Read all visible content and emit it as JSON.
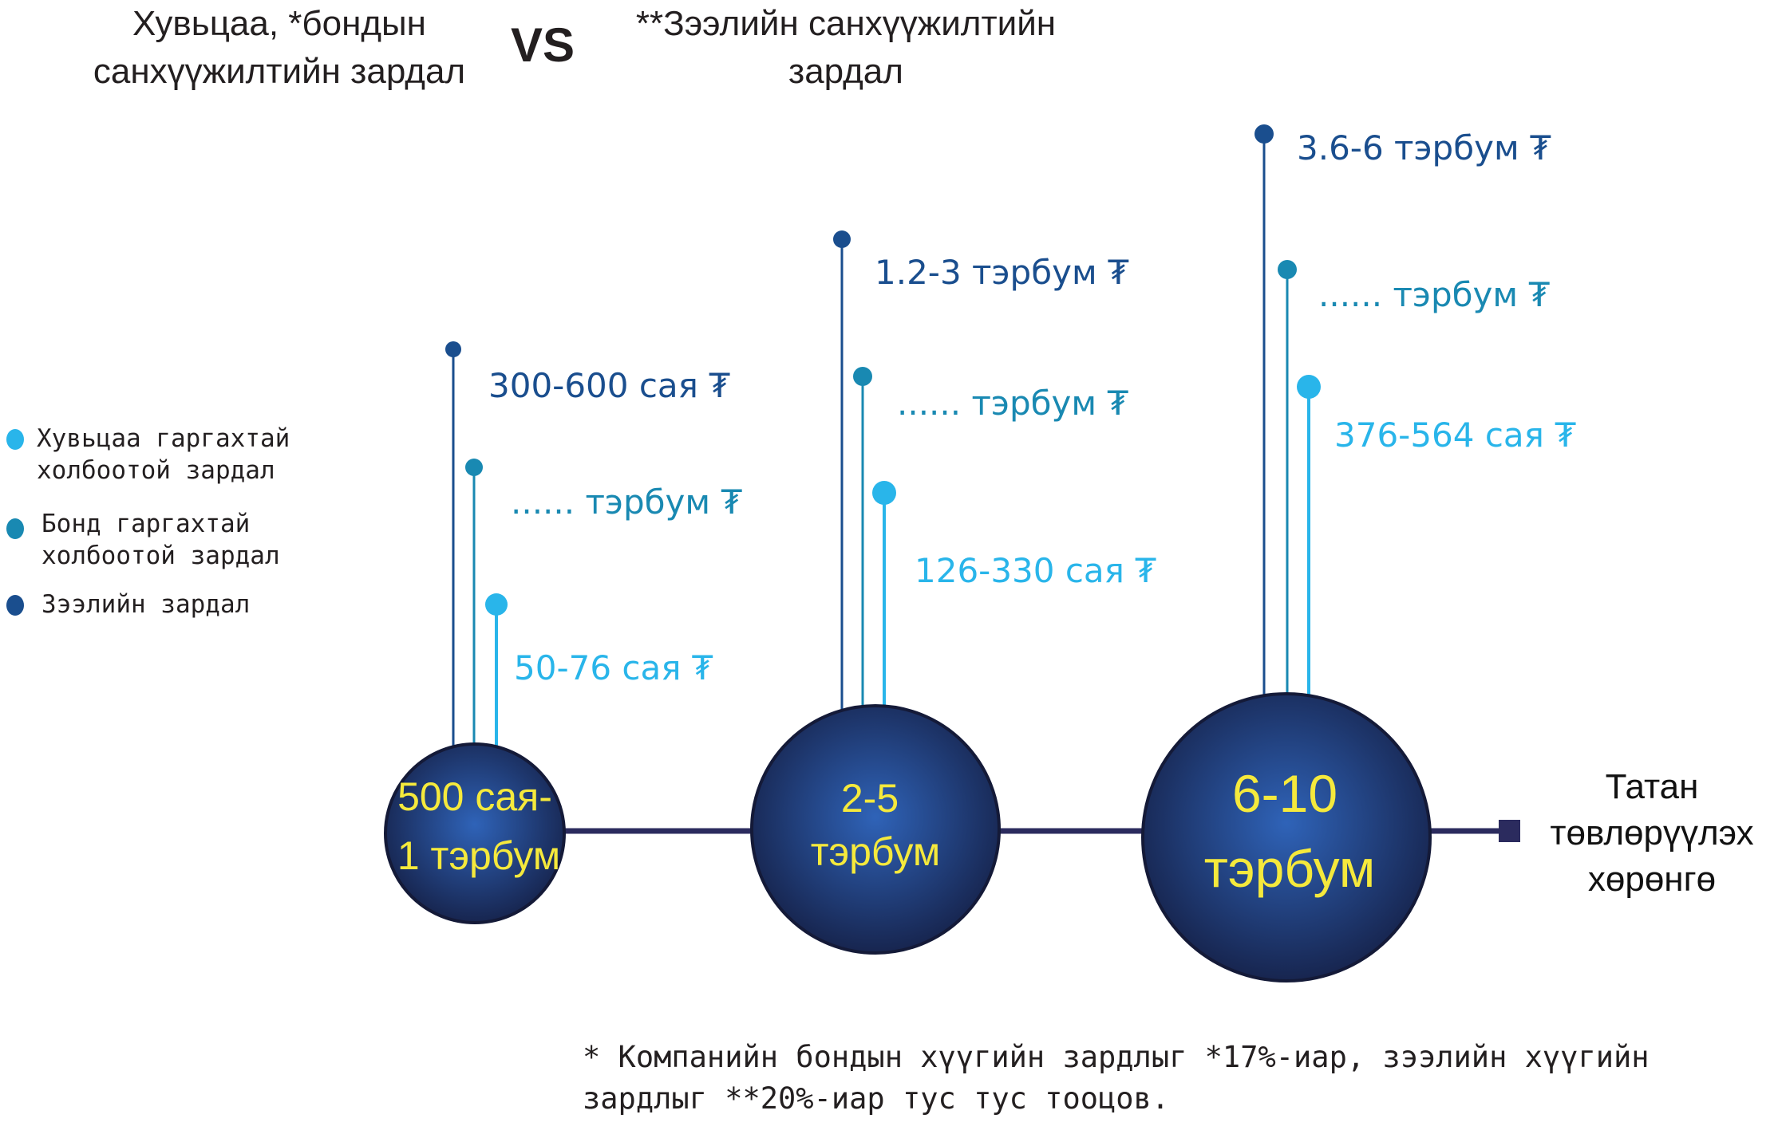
{
  "header": {
    "title_left": "Хувьцаа, *бондын санхүүжилтийн зардал",
    "vs": "VS",
    "title_right": "**Зээлийн санхүүжилтийн зардал"
  },
  "legend": [
    {
      "label": "Хувьцаа гаргахтай холбоотой зардал",
      "color": "#29b5ea"
    },
    {
      "label": "Бонд гаргахтай холбоотой зардал",
      "color": "#1989b2"
    },
    {
      "label": "Зээлийн зардал",
      "color": "#1a4e8e"
    }
  ],
  "colors": {
    "loan": "#1a4e8e",
    "bond": "#1989b2",
    "equity": "#29b5ea",
    "sphere_dark": "#17254f",
    "sphere_light": "#2f63b8",
    "bubble_text": "#f5e93c",
    "axis_line": "#2b2b5e"
  },
  "groups": [
    {
      "bubble_line1": "500 сая-",
      "bubble_line2": "1 тэрбум",
      "loan_cost": "300-600 сая ₮",
      "bond_cost": "...... тэрбум ₮",
      "equity_cost": "50-76 сая ₮"
    },
    {
      "bubble_line1": "2-5",
      "bubble_line2": "тэрбум",
      "loan_cost": "1.2-3 тэрбум ₮",
      "bond_cost": "...... тэрбум ₮",
      "equity_cost": "126-330 сая ₮"
    },
    {
      "bubble_line1": "6-10",
      "bubble_line2": "тэрбум",
      "loan_cost": "3.6-6 тэрбум ₮",
      "bond_cost": "...... тэрбум ₮",
      "equity_cost": "376-564 сая ₮"
    }
  ],
  "axis": {
    "label": "Татан төвлөрүүлэх хөрөнгө"
  },
  "footnote": "* Компанийн бондын хүүгийн зардлыг *17%-иар, зээлийн хүүгийн зардлыг **20%-иар тус тус тооцов."
}
